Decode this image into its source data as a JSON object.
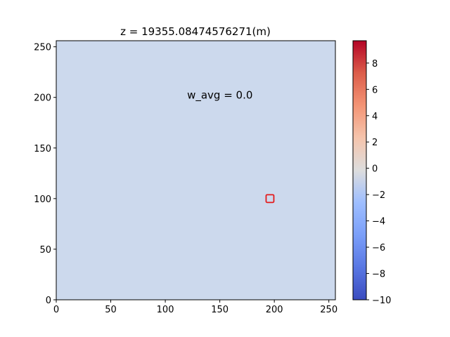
{
  "chart_data": {
    "type": "heatmap",
    "title": "z = 19355.08474576271(m)",
    "xlabel": "",
    "ylabel": "",
    "xlim": [
      0,
      256
    ],
    "ylim": [
      0,
      256
    ],
    "xticks": [
      0,
      50,
      100,
      150,
      200,
      250
    ],
    "yticks": [
      0,
      50,
      100,
      150,
      200,
      250
    ],
    "field_value": 0.0,
    "annotation": {
      "text": "w_avg = 0.0",
      "x": 120,
      "y": 200
    },
    "marker": {
      "shape": "square",
      "x": 196,
      "y": 100,
      "color": "#e31a1c"
    },
    "colorbar": {
      "colormap": "coolwarm",
      "range": [
        -10,
        9.7
      ],
      "ticks": [
        -10,
        -8,
        -6,
        -4,
        -2,
        0,
        2,
        4,
        6,
        8
      ]
    },
    "colors": {
      "cold": "#3b4cc0",
      "neutral": "#dddddd",
      "warm": "#b40426",
      "field": "#ccd9ed"
    }
  }
}
